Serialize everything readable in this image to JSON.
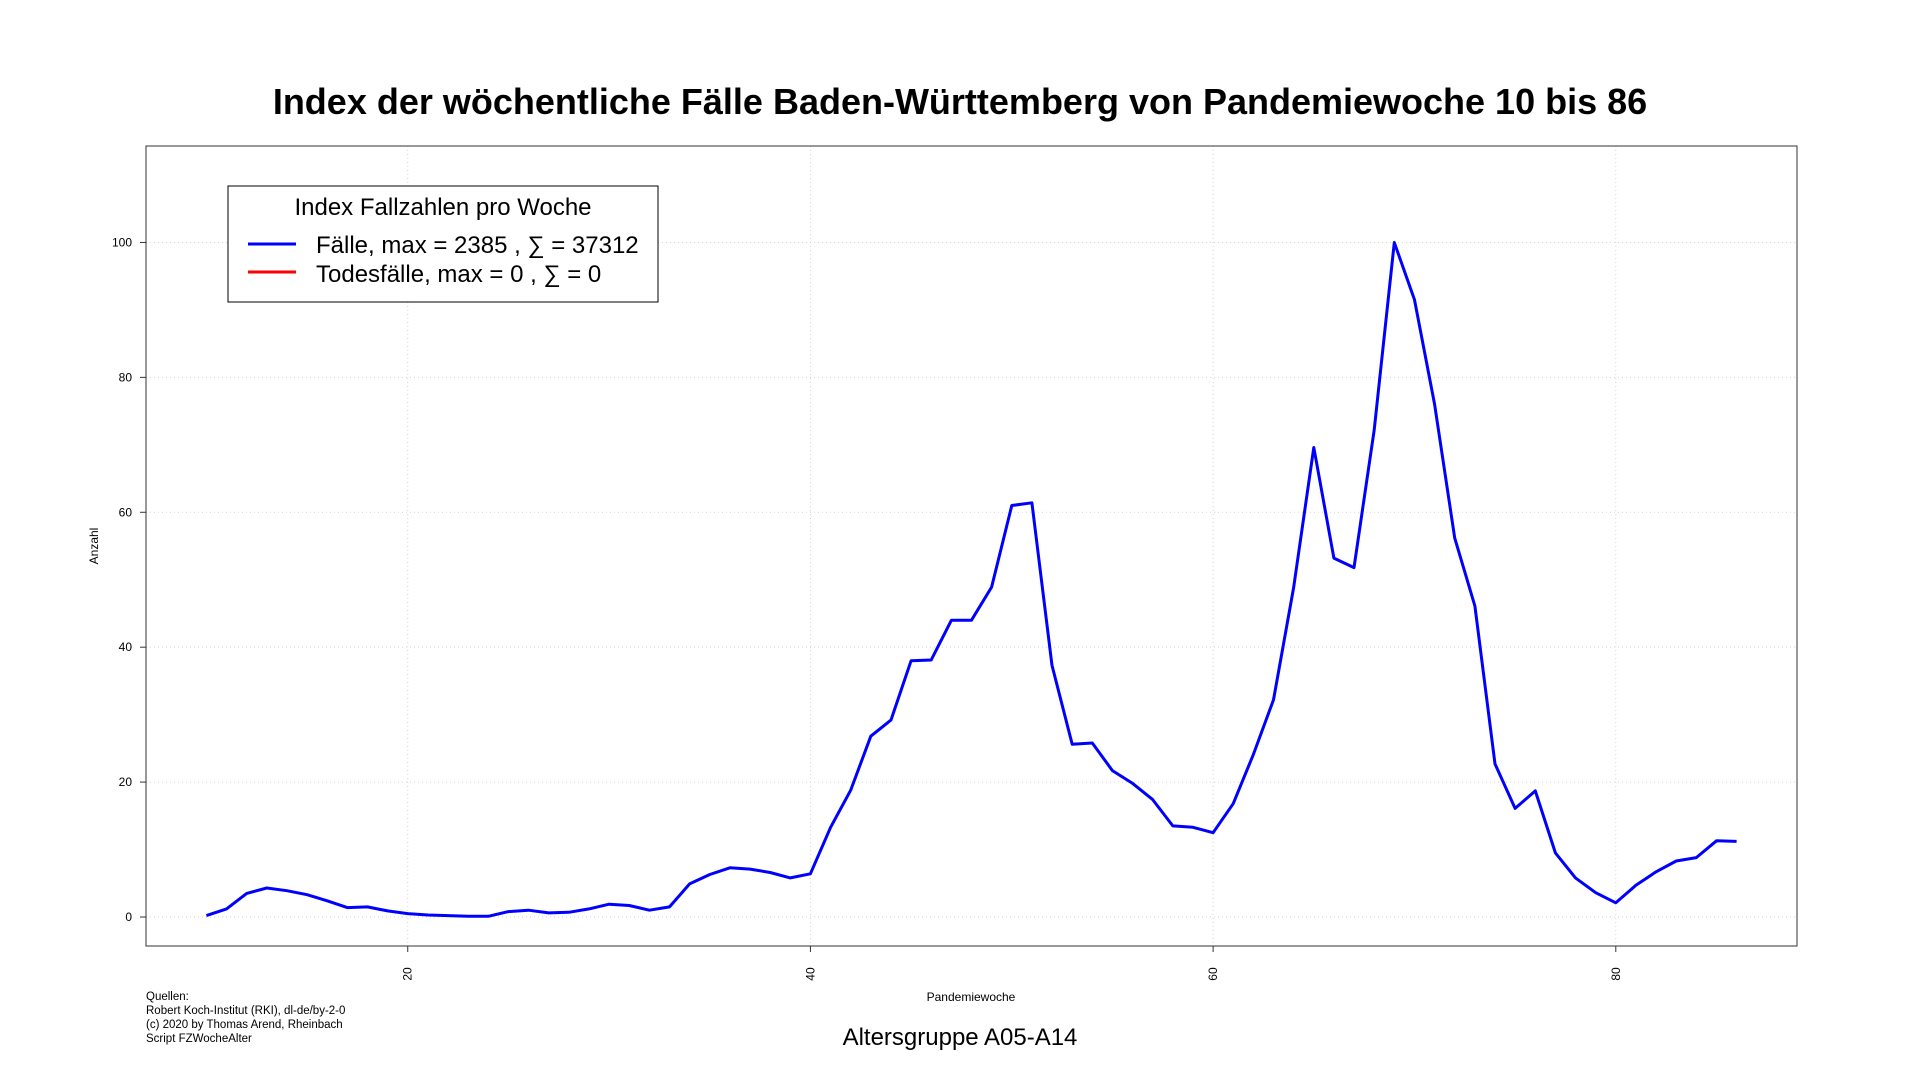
{
  "chart_data": {
    "type": "line",
    "title": "Index der wöchentliche Fälle Baden-Württemberg von Pandemiewoche 10 bis 86",
    "xlabel": "Pandemiewoche",
    "ylabel": "Anzahl",
    "xlim": [
      7,
      89
    ],
    "ylim": [
      -4.3,
      114.3
    ],
    "xticks": [
      20,
      40,
      60,
      80
    ],
    "yticks": [
      0,
      20,
      40,
      60,
      80,
      100
    ],
    "grid": true,
    "legend": {
      "title": "Index Fallzahlen pro Woche",
      "placement": "top-left",
      "entries": [
        {
          "label": "Fälle, max = 2385 ,  ∑  = 37312",
          "color": "#0000ff"
        },
        {
          "label": "Todesfälle, max = 0 ,  ∑  = 0",
          "color": "#ff0000"
        }
      ]
    },
    "series": [
      {
        "name": "Fälle",
        "color": "#0000ff",
        "x": [
          10,
          11,
          12,
          13,
          14,
          15,
          16,
          17,
          18,
          19,
          20,
          21,
          22,
          23,
          24,
          25,
          26,
          27,
          28,
          29,
          30,
          31,
          32,
          33,
          34,
          35,
          36,
          37,
          38,
          39,
          40,
          41,
          42,
          43,
          44,
          45,
          46,
          47,
          48,
          49,
          50,
          51,
          52,
          53,
          54,
          55,
          56,
          57,
          58,
          59,
          60,
          61,
          62,
          63,
          64,
          65,
          66,
          67,
          68,
          69,
          70,
          71,
          72,
          73,
          74,
          75,
          76,
          77,
          78,
          79,
          80,
          81,
          82,
          83,
          84,
          85,
          86
        ],
        "y": [
          0.2,
          1.2,
          3.5,
          4.3,
          3.9,
          3.3,
          2.4,
          1.4,
          1.5,
          0.9,
          0.5,
          0.3,
          0.2,
          0.1,
          0.1,
          0.8,
          1.0,
          0.6,
          0.7,
          1.2,
          1.9,
          1.7,
          1.0,
          1.5,
          4.9,
          6.3,
          7.3,
          7.1,
          6.6,
          5.8,
          6.4,
          13.3,
          18.8,
          26.8,
          29.2,
          38.0,
          38.1,
          44.0,
          44.0,
          48.9,
          61.0,
          61.4,
          37.3,
          25.6,
          25.8,
          21.7,
          19.8,
          17.4,
          13.5,
          13.3,
          12.5,
          16.8,
          24.1,
          32.2,
          48.8,
          69.6,
          53.2,
          51.8,
          72.2,
          100.0,
          91.5,
          76.0,
          56.2,
          46.1,
          22.7,
          16.1,
          18.7,
          9.5,
          5.8,
          3.6,
          2.1,
          4.7,
          6.7,
          8.3,
          8.8,
          11.3,
          11.2
        ]
      },
      {
        "name": "Todesfälle",
        "color": "#ff0000",
        "x": [],
        "y": []
      }
    ]
  },
  "footer": {
    "source_lines": [
      "Quellen:",
      "Robert Koch-Institut (RKI), dl-de/by-2-0",
      "(c) 2020 by Thomas Arend, Rheinbach",
      "Script FZWocheAlter"
    ],
    "subtitle": "Altersgruppe A05-A14"
  }
}
